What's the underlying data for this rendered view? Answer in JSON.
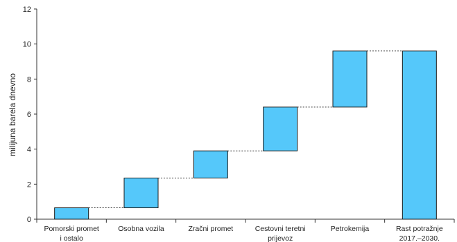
{
  "chart_data": {
    "type": "bar",
    "subtype": "waterfall",
    "title": "",
    "xlabel": "",
    "ylabel": "milijuna barela dnevno",
    "ylim": [
      0,
      12
    ],
    "yticks": [
      0,
      2,
      4,
      6,
      8,
      10,
      12
    ],
    "grid": false,
    "categories": [
      [
        "Pomorski promet",
        "i ostalo"
      ],
      [
        "Osobna vozila"
      ],
      [
        "Zračni promet"
      ],
      [
        "Cestovni teretni",
        "prijevoz"
      ],
      [
        "Petrokemija"
      ],
      [
        "Rast potražnje",
        "2017.–2030."
      ]
    ],
    "segments": [
      {
        "start": 0,
        "end": 0.65
      },
      {
        "start": 0.65,
        "end": 2.35
      },
      {
        "start": 2.35,
        "end": 3.9
      },
      {
        "start": 3.9,
        "end": 6.4
      },
      {
        "start": 6.4,
        "end": 9.6
      },
      {
        "start": 0,
        "end": 9.6
      }
    ],
    "bar_color": "#55C8FA",
    "bar_stroke": "#1a1a1a"
  }
}
